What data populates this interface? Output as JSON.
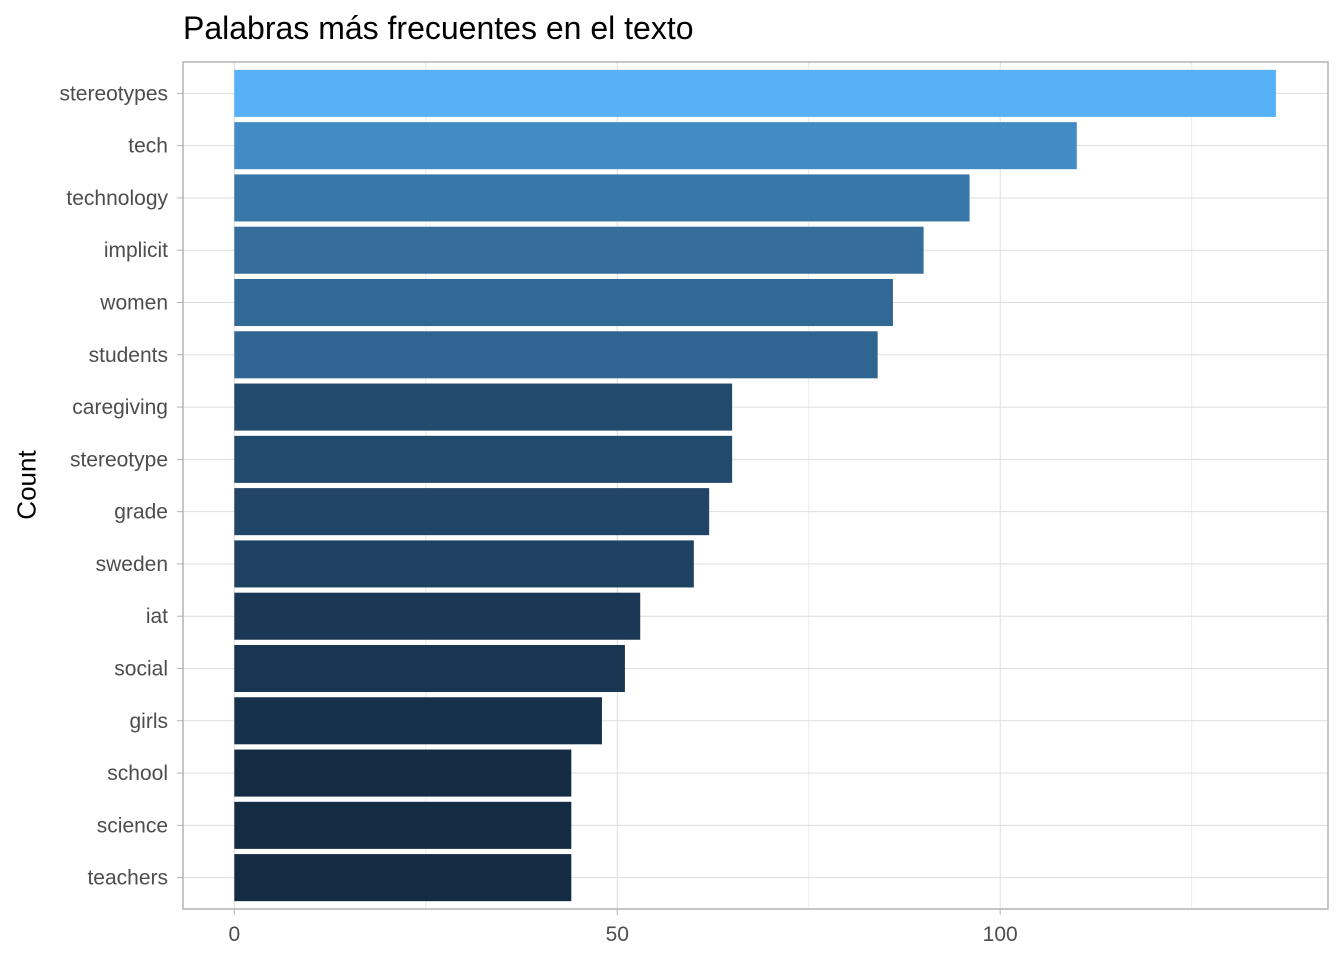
{
  "chart_data": {
    "type": "bar",
    "orientation": "horizontal",
    "title": "Palabras más frecuentes en el texto",
    "xlabel": "",
    "ylabel": "Count",
    "categories": [
      "stereotypes",
      "tech",
      "technology",
      "implicit",
      "women",
      "students",
      "caregiving",
      "stereotype",
      "grade",
      "sweden",
      "iat",
      "social",
      "girls",
      "school",
      "science",
      "teachers"
    ],
    "values": [
      136,
      110,
      96,
      90,
      86,
      84,
      65,
      65,
      62,
      60,
      53,
      51,
      48,
      44,
      44,
      44
    ],
    "xlim": [
      -6.7,
      142.8
    ],
    "xticks": [
      0,
      50,
      100
    ],
    "xtick_labels": [
      "0",
      "50",
      "100"
    ],
    "minor_xticks": [
      25,
      75,
      125
    ],
    "grid": true,
    "fill_scale": {
      "low": "#132B43",
      "high": "#56B1F7"
    },
    "legend": "none"
  }
}
